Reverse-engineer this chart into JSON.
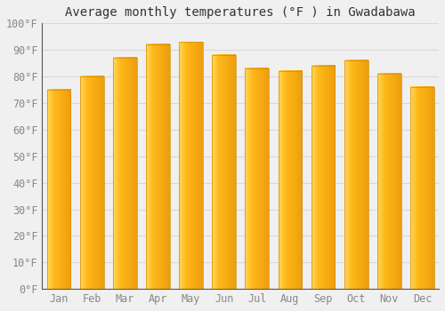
{
  "title": "Average monthly temperatures (°F ) in Gwadabawa",
  "months": [
    "Jan",
    "Feb",
    "Mar",
    "Apr",
    "May",
    "Jun",
    "Jul",
    "Aug",
    "Sep",
    "Oct",
    "Nov",
    "Dec"
  ],
  "values": [
    75,
    80,
    87,
    92,
    93,
    88,
    83,
    82,
    84,
    86,
    81,
    76
  ],
  "bar_color_bottom": "#F5A800",
  "bar_color_top": "#FFD966",
  "bar_color_left": "#FFD050",
  "background_color": "#f0f0f0",
  "plot_bg_color": "#f0f0f0",
  "ylim": [
    0,
    100
  ],
  "ytick_step": 10,
  "grid_color": "#d8d8d8",
  "title_fontsize": 10,
  "tick_fontsize": 8.5,
  "tick_color": "#888888",
  "ylabel_format": "{0}°F"
}
